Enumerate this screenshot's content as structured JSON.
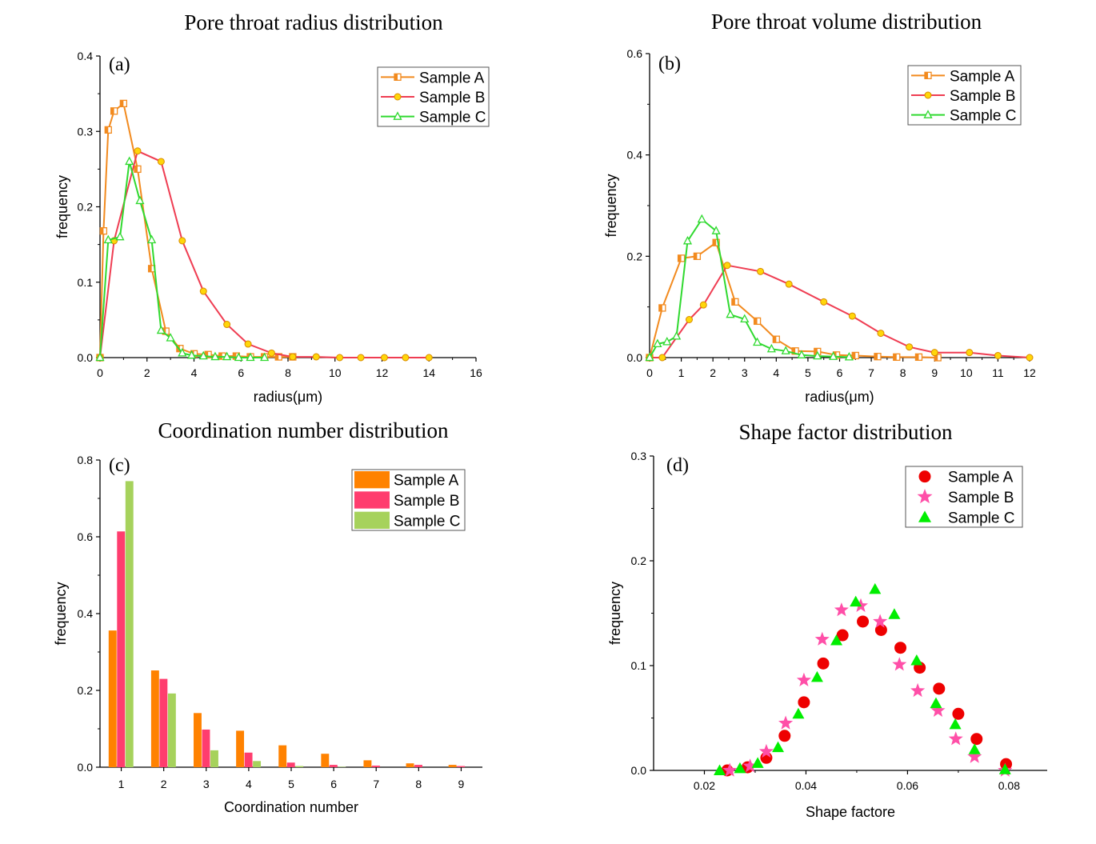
{
  "colors": {
    "sample_a": "#f28a1e",
    "sample_b": "#ef3d52",
    "sample_c": "#2fd92f",
    "bar_a": "#ff8200",
    "bar_b": "#ff3d6e",
    "bar_c": "#a6d25c",
    "scatter_a": "#ee0000",
    "scatter_b": "#ff4fa8",
    "scatter_c": "#00ee00",
    "marker_yellow": "#ffd60a"
  },
  "chart_data": [
    {
      "type": "line",
      "title": "Pore throat radius distribution",
      "panel_label": "(a)",
      "xlabel": "radius(μm)",
      "ylabel": "frequency",
      "xlim": [
        0,
        16
      ],
      "ylim": [
        0,
        0.4
      ],
      "xticks": [
        "0",
        "2",
        "4",
        "6",
        "8",
        "10",
        "12",
        "14",
        "16"
      ],
      "yticks": [
        "0.0",
        "0.1",
        "0.2",
        "0.3",
        "0.4"
      ],
      "series": [
        {
          "name": "Sample A",
          "marker": "square",
          "x": [
            0,
            0.15,
            0.35,
            0.6,
            1.0,
            1.6,
            2.2,
            2.8,
            3.4,
            4.0,
            4.6,
            5.2,
            5.8,
            6.4,
            7.0,
            7.6,
            8.2
          ],
          "y": [
            0,
            0.168,
            0.302,
            0.327,
            0.337,
            0.25,
            0.118,
            0.035,
            0.012,
            0.005,
            0.004,
            0.002,
            0.002,
            0.001,
            0.001,
            0.001,
            0.001
          ]
        },
        {
          "name": "Sample B",
          "marker": "circle",
          "x": [
            0,
            0.6,
            1.6,
            2.6,
            3.5,
            4.4,
            5.4,
            6.3,
            7.3,
            8.2,
            9.2,
            10.2,
            11.1,
            12.1,
            13.0,
            14.0
          ],
          "y": [
            0,
            0.155,
            0.274,
            0.26,
            0.155,
            0.088,
            0.044,
            0.018,
            0.006,
            0.001,
            0.001,
            0.0,
            0.0,
            0.0,
            0.0,
            0.0
          ]
        },
        {
          "name": "Sample C",
          "marker": "triangle",
          "x": [
            0,
            0.35,
            0.85,
            1.25,
            1.7,
            2.2,
            2.6,
            3.0,
            3.5,
            3.9,
            4.4,
            4.9,
            5.4,
            5.9,
            6.4,
            7.0
          ],
          "y": [
            0,
            0.156,
            0.16,
            0.26,
            0.208,
            0.156,
            0.036,
            0.026,
            0.006,
            0.003,
            0.002,
            0.001,
            0.001,
            0.0,
            0.0,
            0.0
          ]
        }
      ]
    },
    {
      "type": "line",
      "title": "Pore throat volume distribution",
      "panel_label": "(b)",
      "xlabel": "radius(μm)",
      "ylabel": "frequency",
      "xlim": [
        0,
        12
      ],
      "ylim": [
        0,
        0.6
      ],
      "xticks": [
        "0",
        "1",
        "2",
        "3",
        "4",
        "5",
        "6",
        "7",
        "8",
        "9",
        "10",
        "11",
        "12"
      ],
      "yticks": [
        "0.0",
        "0.2",
        "0.4",
        "0.6"
      ],
      "series": [
        {
          "name": "Sample A",
          "marker": "square",
          "x": [
            0,
            0.4,
            1.0,
            1.5,
            2.1,
            2.7,
            3.4,
            4.0,
            4.6,
            5.3,
            5.9,
            6.5,
            7.2,
            7.8,
            8.5,
            9.1
          ],
          "y": [
            0,
            0.098,
            0.196,
            0.2,
            0.227,
            0.11,
            0.072,
            0.036,
            0.013,
            0.012,
            0.005,
            0.004,
            0.002,
            0.001,
            0.001,
            0.0
          ]
        },
        {
          "name": "Sample B",
          "marker": "circle",
          "x": [
            0,
            0.4,
            1.25,
            1.7,
            2.45,
            3.5,
            4.4,
            5.5,
            6.4,
            7.3,
            8.2,
            9.0,
            10.1,
            11.0,
            12.0
          ],
          "y": [
            0,
            0.0,
            0.075,
            0.104,
            0.182,
            0.17,
            0.145,
            0.11,
            0.082,
            0.048,
            0.021,
            0.01,
            0.01,
            0.004,
            0.0
          ]
        },
        {
          "name": "Sample C",
          "marker": "triangle",
          "x": [
            0,
            0.25,
            0.55,
            0.85,
            1.2,
            1.65,
            2.1,
            2.55,
            3.0,
            3.4,
            3.85,
            4.3,
            4.8,
            5.3,
            5.8,
            6.3
          ],
          "y": [
            0,
            0.027,
            0.031,
            0.042,
            0.23,
            0.273,
            0.25,
            0.085,
            0.076,
            0.03,
            0.017,
            0.013,
            0.005,
            0.003,
            0.002,
            0.001
          ]
        }
      ]
    },
    {
      "type": "bar",
      "title": "Coordination number distribution",
      "panel_label": "(c)",
      "xlabel": "Coordination number",
      "ylabel": "frequency",
      "ylim": [
        0,
        0.8
      ],
      "categories": [
        "1",
        "2",
        "3",
        "4",
        "5",
        "6",
        "7",
        "8",
        "9"
      ],
      "yticks": [
        "0.0",
        "0.2",
        "0.4",
        "0.6",
        "0.8"
      ],
      "series": [
        {
          "name": "Sample A",
          "values": [
            0.356,
            0.252,
            0.141,
            0.095,
            0.057,
            0.035,
            0.018,
            0.01,
            0.006
          ]
        },
        {
          "name": "Sample B",
          "values": [
            0.614,
            0.23,
            0.098,
            0.038,
            0.012,
            0.006,
            0.004,
            0.006,
            0.003
          ]
        },
        {
          "name": "Sample C",
          "values": [
            0.745,
            0.192,
            0.044,
            0.016,
            0.003,
            0.001,
            0.0,
            0.0,
            0.0
          ]
        }
      ]
    },
    {
      "type": "scatter",
      "title": "Shape factor distribution",
      "panel_label": "(d)",
      "xlabel": "Shape factore",
      "ylabel": "frequency",
      "xlim": [
        0.01,
        0.0875
      ],
      "ylim": [
        0,
        0.3
      ],
      "xticks": [
        "0.02",
        "0.04",
        "0.06",
        "0.08"
      ],
      "yticks": [
        "0.0",
        "0.1",
        "0.2",
        "0.3"
      ],
      "series": [
        {
          "name": "Sample A",
          "marker": "circle",
          "x": [
            0.0245,
            0.0285,
            0.0322,
            0.0358,
            0.0396,
            0.0434,
            0.0472,
            0.0512,
            0.0548,
            0.0586,
            0.0624,
            0.0662,
            0.07,
            0.0736,
            0.0794
          ],
          "y": [
            0.0,
            0.003,
            0.012,
            0.033,
            0.065,
            0.102,
            0.129,
            0.142,
            0.134,
            0.117,
            0.098,
            0.078,
            0.054,
            0.03,
            0.006
          ]
        },
        {
          "name": "Sample B",
          "marker": "star",
          "x": [
            0.025,
            0.029,
            0.0322,
            0.036,
            0.0396,
            0.0432,
            0.047,
            0.0508,
            0.0546,
            0.0584,
            0.062,
            0.066,
            0.0695,
            0.0732,
            0.0792
          ],
          "y": [
            0.0,
            0.004,
            0.018,
            0.045,
            0.086,
            0.125,
            0.153,
            0.157,
            0.142,
            0.101,
            0.076,
            0.057,
            0.03,
            0.013,
            0.0
          ]
        },
        {
          "name": "Sample C",
          "marker": "triangle",
          "x": [
            0.023,
            0.027,
            0.0305,
            0.0345,
            0.0385,
            0.0422,
            0.046,
            0.0498,
            0.0536,
            0.0574,
            0.0618,
            0.0656,
            0.0694,
            0.0732,
            0.0792
          ],
          "y": [
            0.0,
            0.002,
            0.007,
            0.022,
            0.054,
            0.089,
            0.124,
            0.161,
            0.173,
            0.149,
            0.105,
            0.064,
            0.044,
            0.02,
            0.001
          ]
        }
      ]
    }
  ]
}
